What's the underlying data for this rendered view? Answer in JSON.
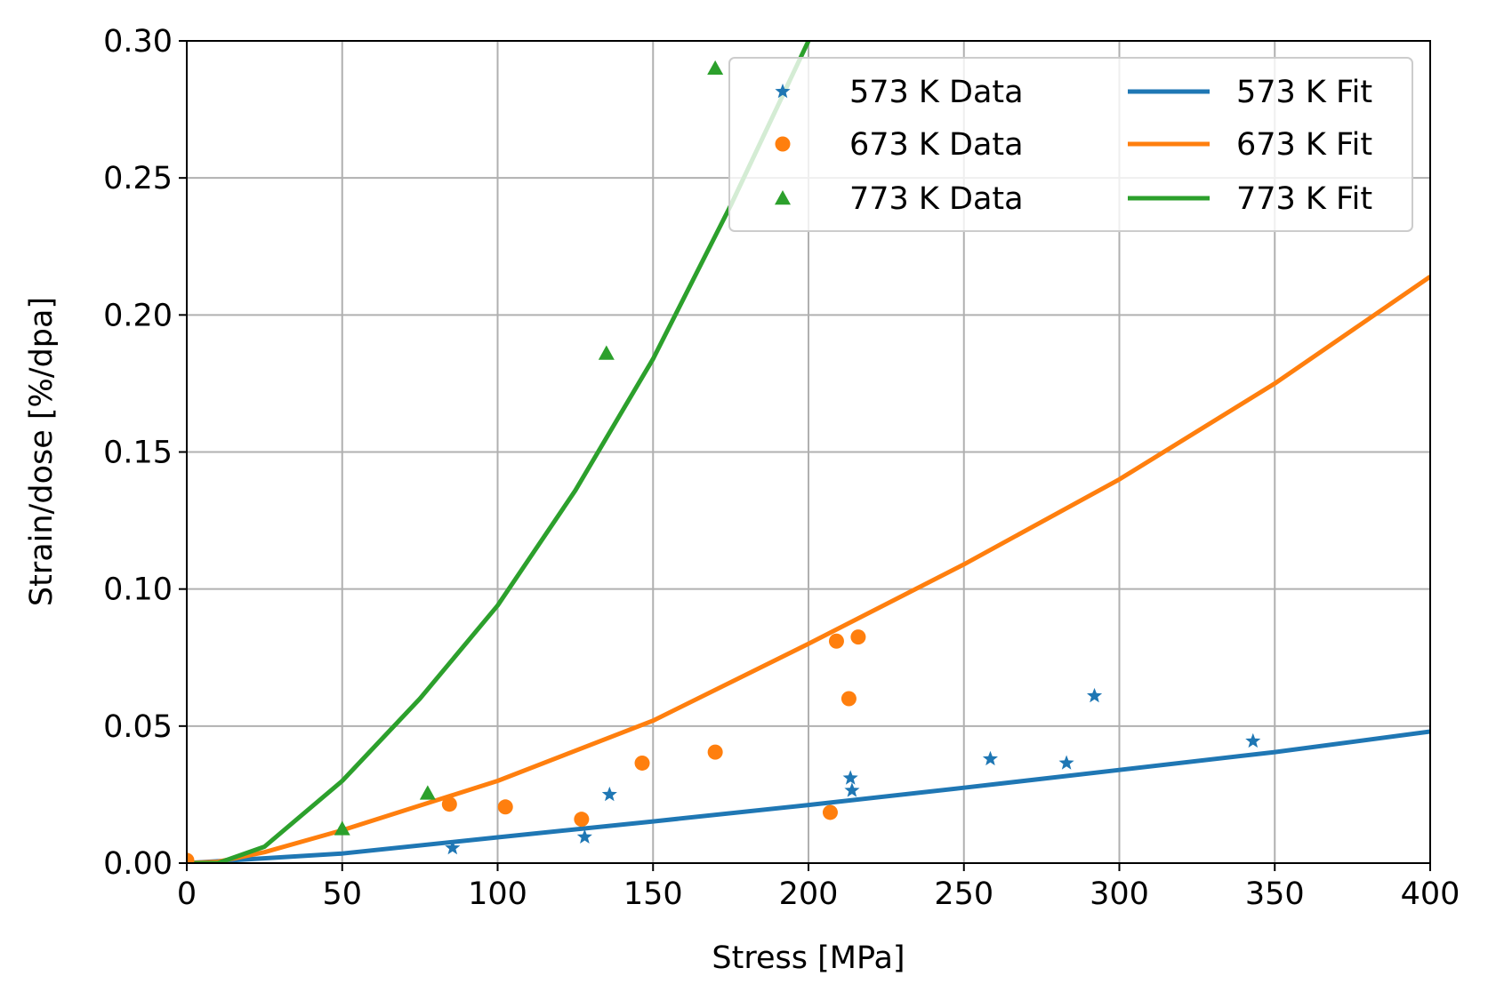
{
  "chart_data": {
    "type": "scatter",
    "xlabel": "Stress [MPa]",
    "ylabel": "Strain/dose [%/dpa]",
    "xlim": [
      0,
      400
    ],
    "ylim": [
      0,
      0.3
    ],
    "xticks": [
      0,
      50,
      100,
      150,
      200,
      250,
      300,
      350,
      400
    ],
    "xtick_labels": [
      "0",
      "50",
      "100",
      "150",
      "200",
      "250",
      "300",
      "350",
      "400"
    ],
    "yticks": [
      0,
      0.05,
      0.1,
      0.15,
      0.2,
      0.25,
      0.3
    ],
    "ytick_labels": [
      "0.00",
      "0.05",
      "0.10",
      "0.15",
      "0.20",
      "0.25",
      "0.30"
    ],
    "grid": true,
    "legend_position": "top-right",
    "legend_columns": 2,
    "series": [
      {
        "name": "573 K Data",
        "kind": "scatter",
        "marker": "star",
        "color": "#1f77b4",
        "points": [
          [
            85.5,
            0.0055
          ],
          [
            128,
            0.0095
          ],
          [
            136,
            0.025
          ],
          [
            213.5,
            0.031
          ],
          [
            214,
            0.0265
          ],
          [
            258.5,
            0.038
          ],
          [
            283,
            0.0365
          ],
          [
            292,
            0.061
          ],
          [
            343,
            0.0445
          ]
        ]
      },
      {
        "name": "673 K Data",
        "kind": "scatter",
        "marker": "circle",
        "color": "#ff7f0e",
        "points": [
          [
            0,
            0.001
          ],
          [
            84.5,
            0.0215
          ],
          [
            102.5,
            0.0205
          ],
          [
            127,
            0.016
          ],
          [
            146.5,
            0.0365
          ],
          [
            170,
            0.0405
          ],
          [
            207,
            0.0185
          ],
          [
            209,
            0.081
          ],
          [
            213,
            0.06
          ],
          [
            216,
            0.0825
          ]
        ]
      },
      {
        "name": "773 K Data",
        "kind": "scatter",
        "marker": "triangle",
        "color": "#2ca02c",
        "points": [
          [
            50,
            0.0125
          ],
          [
            77.5,
            0.0255
          ],
          [
            135,
            0.186
          ],
          [
            170,
            0.29
          ]
        ]
      },
      {
        "name": "573 K Fit",
        "kind": "line",
        "color": "#1f77b4",
        "x": [
          0,
          50,
          100,
          150,
          200,
          250,
          300,
          350,
          400
        ],
        "y": [
          0.0,
          0.0035,
          0.0094,
          0.0152,
          0.0212,
          0.0275,
          0.034,
          0.0405,
          0.048
        ]
      },
      {
        "name": "673 K Fit",
        "kind": "line",
        "color": "#ff7f0e",
        "x": [
          0,
          10,
          25,
          50,
          100,
          150,
          200,
          250,
          300,
          350,
          400
        ],
        "y": [
          0.0,
          0.0005,
          0.004,
          0.012,
          0.03,
          0.052,
          0.08,
          0.109,
          0.14,
          0.175,
          0.214
        ]
      },
      {
        "name": "773 K Fit",
        "kind": "line",
        "color": "#2ca02c",
        "x": [
          0,
          10,
          25,
          50,
          75,
          100,
          125,
          150,
          175,
          200,
          202
        ],
        "y": [
          0.0,
          0.0,
          0.006,
          0.03,
          0.06,
          0.094,
          0.136,
          0.184,
          0.24,
          0.3,
          0.305
        ]
      }
    ]
  }
}
